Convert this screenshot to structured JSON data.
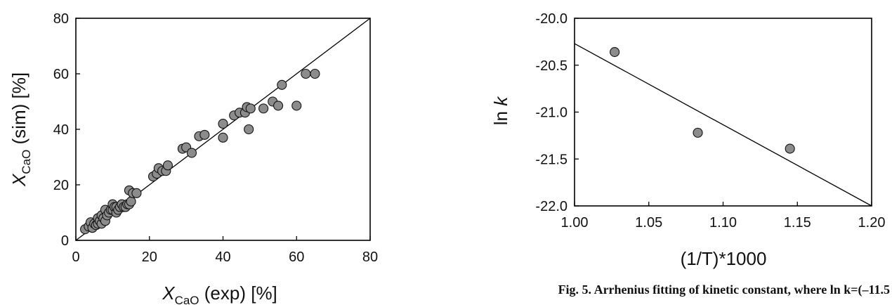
{
  "chart_data": [
    {
      "type": "scatter",
      "title": "",
      "xlabel": {
        "main": "X",
        "sub": "CaO",
        "rest": " (exp) [%]"
      },
      "ylabel": {
        "main": "X",
        "sub": "CaO",
        "rest": " (sim) [%]"
      },
      "xlim": [
        0,
        80
      ],
      "ylim": [
        0,
        80
      ],
      "xticks": [
        "0",
        "20",
        "40",
        "60",
        "80"
      ],
      "yticks": [
        "0",
        "20",
        "40",
        "60",
        "80"
      ],
      "grid": false,
      "reference_line": {
        "from": [
          0,
          0
        ],
        "to": [
          80,
          80
        ]
      },
      "marker_color": "#8c8c8c",
      "points": [
        [
          2.5,
          4
        ],
        [
          3.5,
          5
        ],
        [
          4,
          6.5
        ],
        [
          4.5,
          4.5
        ],
        [
          5,
          6
        ],
        [
          5.5,
          5.5
        ],
        [
          6,
          6
        ],
        [
          6,
          8
        ],
        [
          6.5,
          7
        ],
        [
          7,
          6
        ],
        [
          7,
          9
        ],
        [
          7.5,
          8
        ],
        [
          8,
          7
        ],
        [
          8,
          11
        ],
        [
          8.5,
          9
        ],
        [
          9,
          10
        ],
        [
          9.5,
          11
        ],
        [
          10,
          11
        ],
        [
          10,
          13
        ],
        [
          10.5,
          12
        ],
        [
          11,
          10
        ],
        [
          11,
          12
        ],
        [
          11.5,
          11
        ],
        [
          12,
          12
        ],
        [
          12.5,
          13
        ],
        [
          13,
          12
        ],
        [
          13.5,
          12
        ],
        [
          14,
          13
        ],
        [
          14.5,
          13
        ],
        [
          14.5,
          18
        ],
        [
          15,
          14
        ],
        [
          15.5,
          17
        ],
        [
          16.5,
          17
        ],
        [
          21,
          23
        ],
        [
          22,
          24
        ],
        [
          22.5,
          26
        ],
        [
          23.5,
          25
        ],
        [
          24.5,
          25
        ],
        [
          25,
          27
        ],
        [
          29,
          33
        ],
        [
          30,
          33.5
        ],
        [
          31.5,
          31.5
        ],
        [
          33.5,
          37.5
        ],
        [
          35,
          38
        ],
        [
          40,
          37
        ],
        [
          40,
          42
        ],
        [
          43,
          45
        ],
        [
          44.5,
          46
        ],
        [
          46,
          46
        ],
        [
          46.5,
          48
        ],
        [
          47,
          40
        ],
        [
          47.5,
          47.5
        ],
        [
          51,
          47.5
        ],
        [
          53.5,
          50
        ],
        [
          55,
          48.5
        ],
        [
          56,
          56
        ],
        [
          60,
          48.5
        ],
        [
          62.5,
          60
        ],
        [
          65,
          60
        ]
      ]
    },
    {
      "type": "scatter",
      "title": "",
      "xlabel": "(1/T)*1000",
      "ylabel": {
        "main": "ln ",
        "italic": "k"
      },
      "xlim": [
        1.0,
        1.2
      ],
      "ylim": [
        -22.0,
        -20.0
      ],
      "xticks": [
        "1.00",
        "1.05",
        "1.10",
        "1.15",
        "1.20"
      ],
      "yticks": [
        "-20.0",
        "-20.5",
        "-21.0",
        "-21.5",
        "-22.0"
      ],
      "grid": false,
      "marker_color": "#8c8c8c",
      "points": [
        [
          1.027,
          -20.36
        ],
        [
          1.083,
          -21.22
        ],
        [
          1.145,
          -21.39
        ]
      ],
      "fit_line": {
        "from": [
          1.0,
          -20.27
        ],
        "to": [
          1.2,
          -22.0
        ]
      }
    }
  ],
  "caption": "Fig. 5. Arrhenius fitting of kinetic constant, where ln k=(–11.5"
}
